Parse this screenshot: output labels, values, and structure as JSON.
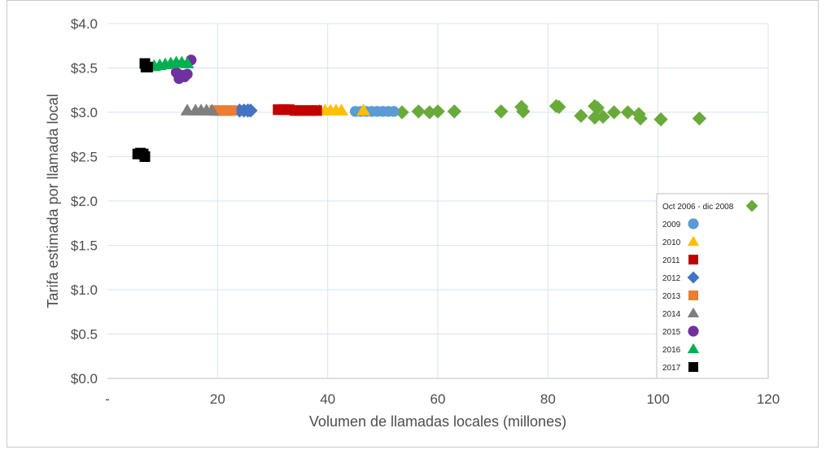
{
  "chart_data": {
    "type": "scatter",
    "title": "",
    "xlabel": "Volumen de llamadas locales (millones)",
    "ylabel": "Tarifa estimada por llamada local",
    "xlim": [
      0,
      120
    ],
    "ylim": [
      0,
      4
    ],
    "x_ticks": [
      {
        "value": 0,
        "label": "-"
      },
      {
        "value": 20,
        "label": "20"
      },
      {
        "value": 40,
        "label": "40"
      },
      {
        "value": 60,
        "label": "60"
      },
      {
        "value": 80,
        "label": "80"
      },
      {
        "value": 100,
        "label": "100"
      },
      {
        "value": 120,
        "label": "120"
      }
    ],
    "y_ticks": [
      {
        "value": 0,
        "label": "$0.0"
      },
      {
        "value": 0.5,
        "label": "$0.5"
      },
      {
        "value": 1.0,
        "label": "$1.0"
      },
      {
        "value": 1.5,
        "label": "$1.5"
      },
      {
        "value": 2.0,
        "label": "$2.0"
      },
      {
        "value": 2.5,
        "label": "$2.5"
      },
      {
        "value": 3.0,
        "label": "$3.0"
      },
      {
        "value": 3.5,
        "label": "$3.5"
      },
      {
        "value": 4.0,
        "label": "$4.0"
      }
    ],
    "grid": true,
    "legend_position": "right",
    "series": [
      {
        "name": "Oct 2006 - dic 2008",
        "marker": "diamond",
        "color": "#6aaa3a",
        "points": [
          [
            53.5,
            3.0
          ],
          [
            56.5,
            3.01
          ],
          [
            58.5,
            3.0
          ],
          [
            60,
            3.01
          ],
          [
            63,
            3.01
          ],
          [
            71.5,
            3.01
          ],
          [
            75.2,
            3.06
          ],
          [
            75.5,
            3.01
          ],
          [
            81.5,
            3.07
          ],
          [
            82,
            3.06
          ],
          [
            86,
            2.96
          ],
          [
            88.5,
            3.07
          ],
          [
            89,
            3.05
          ],
          [
            88.5,
            2.94
          ],
          [
            90,
            2.95
          ],
          [
            92,
            3.0
          ],
          [
            94.5,
            3.0
          ],
          [
            96.5,
            2.98
          ],
          [
            96.8,
            2.93
          ],
          [
            100.5,
            2.92
          ],
          [
            107.5,
            2.93
          ]
        ]
      },
      {
        "name": "2009",
        "marker": "circle",
        "color": "#5b9bd5",
        "points": [
          [
            45,
            3.01
          ],
          [
            46,
            3.01
          ],
          [
            47,
            3.01
          ],
          [
            48,
            3.01
          ],
          [
            49,
            3.01
          ],
          [
            50,
            3.01
          ],
          [
            51,
            3.01
          ],
          [
            52,
            3.01
          ]
        ]
      },
      {
        "name": "2010",
        "marker": "triangle",
        "color": "#ffc000",
        "points": [
          [
            38.5,
            3.02
          ],
          [
            39.5,
            3.02
          ],
          [
            40.5,
            3.02
          ],
          [
            41.5,
            3.02
          ],
          [
            42.5,
            3.02
          ],
          [
            46.5,
            3.02
          ]
        ]
      },
      {
        "name": "2011",
        "marker": "square",
        "color": "#c00000",
        "points": [
          [
            31,
            3.03
          ],
          [
            32,
            3.03
          ],
          [
            33,
            3.03
          ],
          [
            34,
            3.02
          ],
          [
            35,
            3.02
          ],
          [
            36,
            3.02
          ],
          [
            37,
            3.02
          ],
          [
            38,
            3.02
          ]
        ]
      },
      {
        "name": "2012",
        "marker": "diamond",
        "color": "#4472c4",
        "points": [
          [
            24,
            3.02
          ],
          [
            24.8,
            3.02
          ],
          [
            25.5,
            3.02
          ],
          [
            26,
            3.02
          ]
        ]
      },
      {
        "name": "2013",
        "marker": "square",
        "color": "#ed7d31",
        "points": [
          [
            19.5,
            3.02
          ],
          [
            20.5,
            3.02
          ],
          [
            21.5,
            3.02
          ],
          [
            22.5,
            3.02
          ]
        ]
      },
      {
        "name": "2014",
        "marker": "triangle",
        "color": "#7f7f7f",
        "points": [
          [
            14.5,
            3.02
          ],
          [
            16,
            3.02
          ],
          [
            17,
            3.02
          ],
          [
            18,
            3.02
          ],
          [
            19,
            3.02
          ]
        ]
      },
      {
        "name": "2015",
        "marker": "circle",
        "color": "#7030a0",
        "points": [
          [
            12.5,
            3.45
          ],
          [
            13,
            3.38
          ],
          [
            13.5,
            3.42
          ],
          [
            14,
            3.4
          ],
          [
            14.5,
            3.43
          ],
          [
            15.2,
            3.59
          ]
        ]
      },
      {
        "name": "2016",
        "marker": "triangle",
        "color": "#00b050",
        "points": [
          [
            7.5,
            3.52
          ],
          [
            8.5,
            3.52
          ],
          [
            9.5,
            3.53
          ],
          [
            10.5,
            3.54
          ],
          [
            11.5,
            3.55
          ],
          [
            12.5,
            3.56
          ],
          [
            13.5,
            3.56
          ],
          [
            14.5,
            3.55
          ]
        ]
      },
      {
        "name": "2017",
        "marker": "square",
        "color": "#000000",
        "points": [
          [
            6.8,
            3.55
          ],
          [
            7,
            3.51
          ],
          [
            7.3,
            3.51
          ],
          [
            5.5,
            2.53
          ],
          [
            6,
            2.54
          ],
          [
            6.5,
            2.53
          ],
          [
            6.8,
            2.5
          ]
        ]
      }
    ]
  }
}
